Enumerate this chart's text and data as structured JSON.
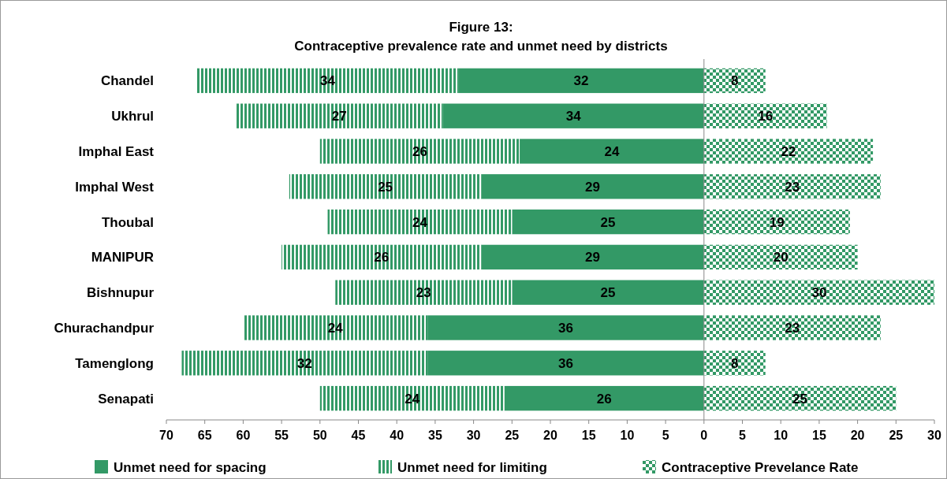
{
  "chart_data": [
    {
      "type": "bar",
      "orientation": "horizontal",
      "stacked": true,
      "data_labels": true,
      "title": "Figure 13:",
      "subtitle": "Contraceptive prevalence rate and unmet need by districts",
      "categories": [
        "Chandel",
        "Ukhrul",
        "Imphal East",
        "Imphal West",
        "Thoubal",
        "MANIPUR",
        "Bishnupur",
        "Churachandpur",
        "Tamenglong",
        "Senapati"
      ],
      "series": [
        {
          "name": "Unmet need for spacing",
          "color": "#339966",
          "values": [
            32,
            34,
            24,
            29,
            25,
            29,
            25,
            36,
            36,
            26
          ]
        },
        {
          "name": "Unmet need for limiting",
          "color": "#339966",
          "values": [
            34,
            27,
            26,
            25,
            24,
            26,
            23,
            24,
            32,
            24
          ]
        }
      ],
      "xlim": [
        70,
        0
      ],
      "xticks": [
        70,
        65,
        60,
        55,
        50,
        45,
        40,
        35,
        30,
        25,
        20,
        15,
        10,
        5,
        0
      ],
      "legend": "bottom"
    },
    {
      "type": "bar",
      "orientation": "horizontal",
      "data_labels": true,
      "tick_labels": "x",
      "categories": [
        null,
        null,
        null,
        null,
        null,
        null,
        null,
        null,
        null,
        null
      ],
      "series": [
        {
          "name": "Contraceptive Prevelance Rate",
          "color": "#339966",
          "values": [
            8,
            16,
            22,
            23,
            19,
            20,
            30,
            23,
            8,
            25
          ]
        }
      ],
      "xlim": [
        0,
        30
      ],
      "xticks": [
        5,
        10,
        15,
        20,
        25,
        30
      ],
      "legend": "bottom"
    }
  ]
}
